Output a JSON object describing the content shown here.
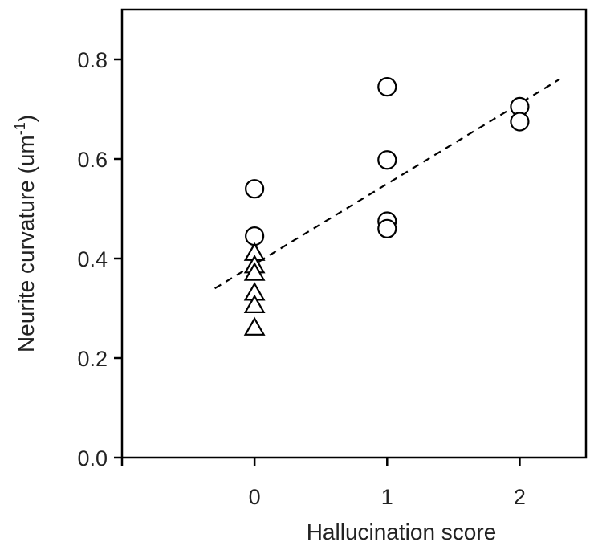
{
  "chart_data": {
    "type": "scatter",
    "xlabel": "Hallucination score",
    "ylabel": "Neurite curvature (um",
    "ylabel_superscript": "-1",
    "ylabel_suffix": ")",
    "xlim": [
      -1,
      2.5
    ],
    "ylim": [
      0.0,
      0.9
    ],
    "x_ticks": [
      0,
      1,
      2
    ],
    "y_ticks": [
      0.0,
      0.2,
      0.4,
      0.6,
      0.8
    ],
    "y_tick_labels": [
      "0.0",
      "0.2",
      "0.4",
      "0.6",
      "0.8"
    ],
    "x_tick_labels": [
      "0",
      "1",
      "2"
    ],
    "grid": false,
    "series": [
      {
        "marker": "circle",
        "points": [
          {
            "x": 0,
            "y": 0.54
          },
          {
            "x": 0,
            "y": 0.445
          },
          {
            "x": 1,
            "y": 0.745
          },
          {
            "x": 1,
            "y": 0.598
          },
          {
            "x": 1,
            "y": 0.475
          },
          {
            "x": 1,
            "y": 0.46
          },
          {
            "x": 2,
            "y": 0.705
          },
          {
            "x": 2,
            "y": 0.675
          }
        ]
      },
      {
        "marker": "triangle",
        "points": [
          {
            "x": 0,
            "y": 0.41
          },
          {
            "x": 0,
            "y": 0.385
          },
          {
            "x": 0,
            "y": 0.37
          },
          {
            "x": 0,
            "y": 0.33
          },
          {
            "x": 0,
            "y": 0.305
          },
          {
            "x": 0,
            "y": 0.26
          }
        ]
      }
    ],
    "trendline": {
      "style": "dashed",
      "from": {
        "x": -0.3,
        "y": 0.34
      },
      "to": {
        "x": 2.3,
        "y": 0.76
      }
    },
    "colors": {
      "axis": "#000000",
      "marker_fill": "#ffffff",
      "marker_stroke": "#000000",
      "text": "#222222"
    }
  }
}
